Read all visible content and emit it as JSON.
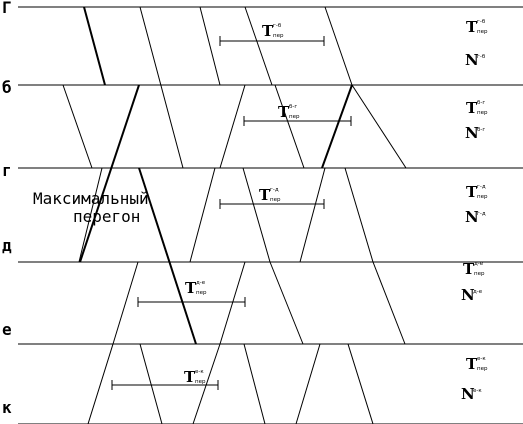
{
  "stations": [
    "Г",
    "б",
    "г",
    "д",
    "е",
    "к"
  ],
  "caption_lines": [
    "Максимальный",
    "перегон"
  ],
  "t_main": "T",
  "t_sub_bottom": "пер",
  "n_main": "N",
  "segments": [
    {
      "t_sup": "г-б",
      "n_sup": "г-б"
    },
    {
      "t_sup": "б-г",
      "n_sup": "б-г"
    },
    {
      "t_sup": "г-д",
      "n_sup": "г-д"
    },
    {
      "t_sup": "д-е",
      "n_sup": "д-е"
    },
    {
      "t_sup": "е-к",
      "n_sup": "е-к"
    }
  ]
}
